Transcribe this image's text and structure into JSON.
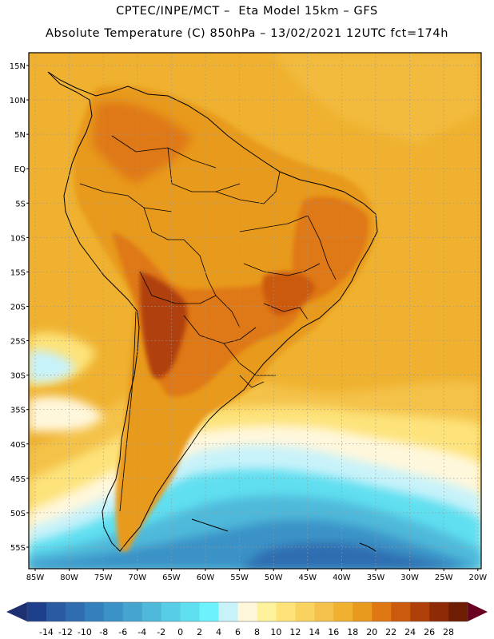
{
  "header": {
    "line1": "CPTEC/INPE/MCT –  Eta Model 15km – GFS",
    "line2": "Absolute Temperature (C) 850hPa – 13/02/2021 12UTC fct=174h"
  },
  "axes": {
    "lat_labels": [
      "15N",
      "10N",
      "5N",
      "EQ",
      "5S",
      "10S",
      "15S",
      "20S",
      "25S",
      "30S",
      "35S",
      "40S",
      "45S",
      "50S",
      "55S"
    ],
    "lon_labels": [
      "85W",
      "80W",
      "75W",
      "70W",
      "65W",
      "60W",
      "55W",
      "50W",
      "45W",
      "40W",
      "35W",
      "30W",
      "25W",
      "20W"
    ]
  },
  "colorbar": {
    "labels": [
      "-14",
      "-12",
      "-10",
      "-8",
      "-6",
      "-4",
      "-2",
      "0",
      "2",
      "4",
      "6",
      "8",
      "10",
      "12",
      "14",
      "16",
      "18",
      "20",
      "22",
      "24",
      "26",
      "28"
    ],
    "colors": [
      "#1e3f8c",
      "#2a5aa2",
      "#2f6db0",
      "#3380bd",
      "#3a92c6",
      "#45a5cf",
      "#4fb9da",
      "#57cde6",
      "#60dff0",
      "#6cf2fb",
      "#c8f2fa",
      "#fff7dc",
      "#fef39c",
      "#fde37a",
      "#f9d360",
      "#f4c24a",
      "#efb12f",
      "#e89a1e",
      "#df7812",
      "#cc5a0d",
      "#b0400a",
      "#8f2a07",
      "#6f1c05"
    ],
    "left_arrow_color": "#1e3070",
    "right_arrow_color": "#6a0022"
  },
  "colors": {
    "ocean_warm": "#efb12f",
    "land_base": "#e89a1e",
    "hot": "#cc5a0d",
    "hottest": "#b0400a",
    "cool_yellow": "#fde37a",
    "cold_cyan": "#60dff0",
    "cold_blue": "#3a92c6"
  }
}
